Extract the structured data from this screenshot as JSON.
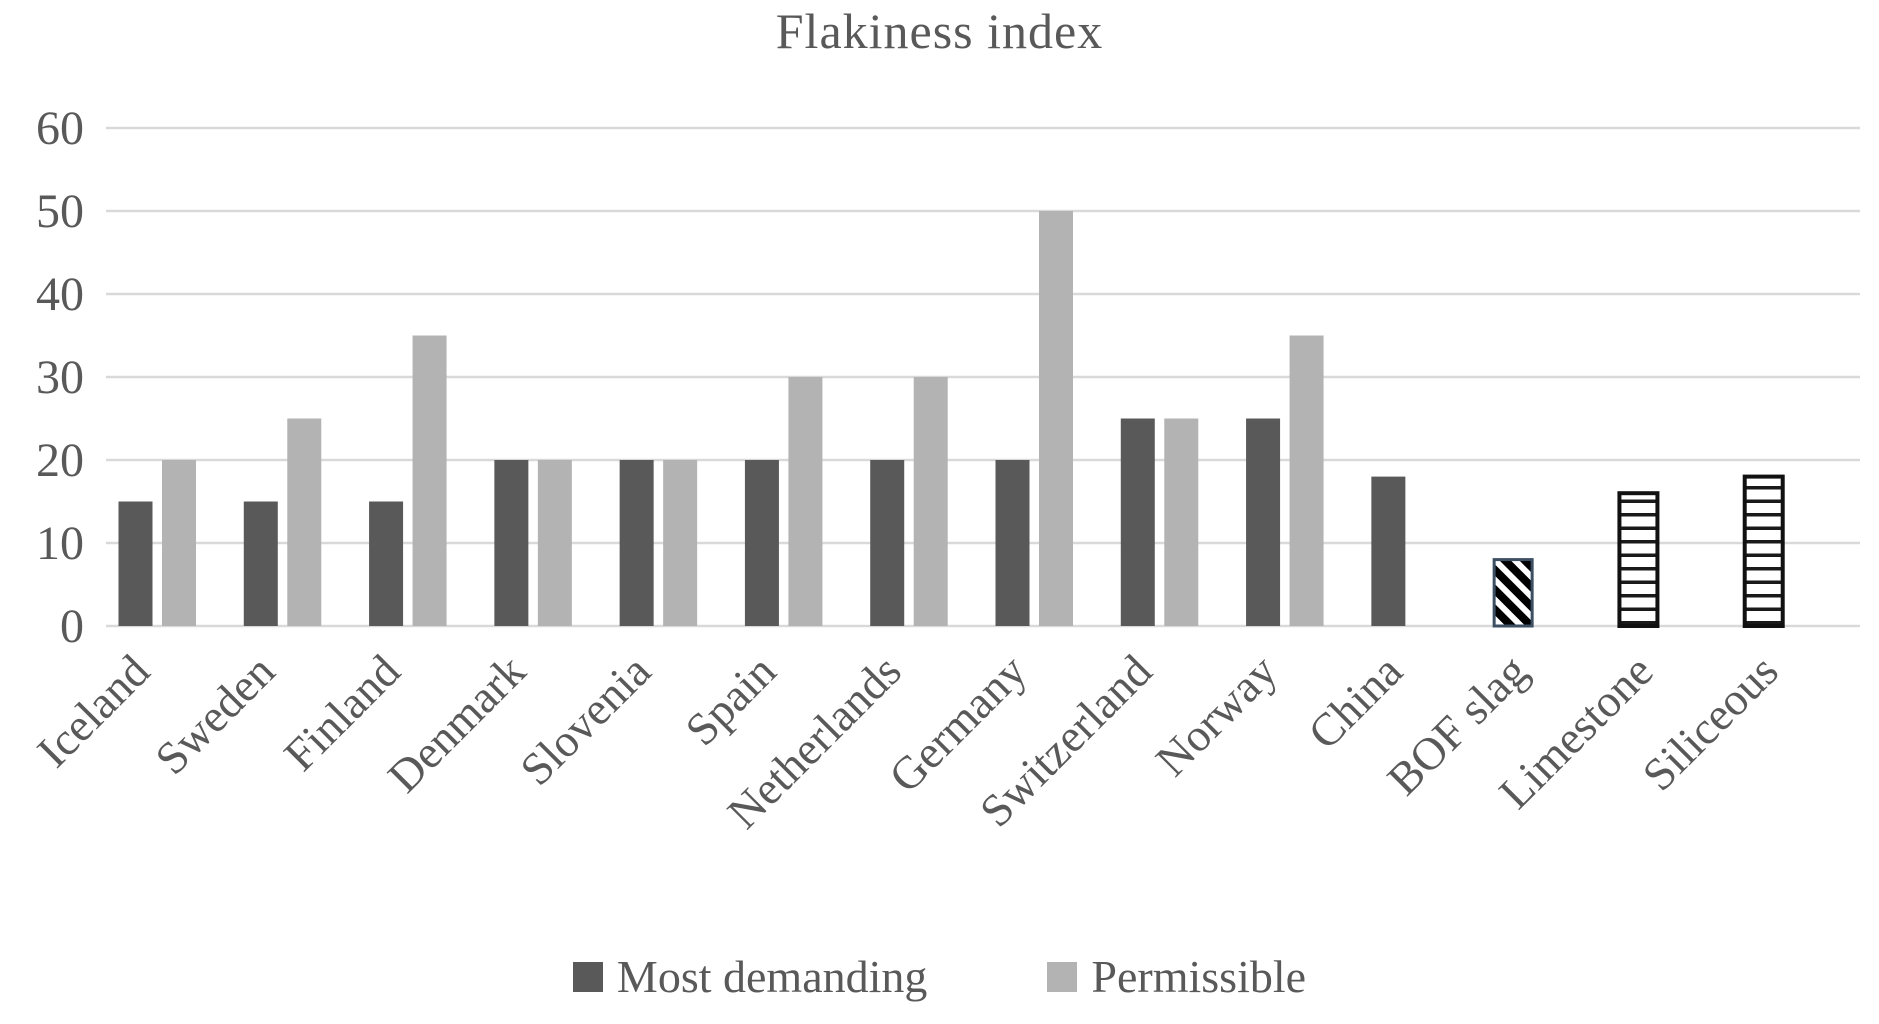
{
  "chart_data": {
    "type": "bar",
    "title": "Flakiness index",
    "categories": [
      "Iceland",
      "Sweden",
      "Finland",
      "Denmark",
      "Slovenia",
      "Spain",
      "Netherlands",
      "Germany",
      "Switzerland",
      "Norway",
      "China",
      "BOF slag",
      "Limestone",
      "Siliceous"
    ],
    "series": [
      {
        "name": "Most demanding",
        "color": "#595959",
        "values": [
          15,
          15,
          15,
          20,
          20,
          20,
          20,
          20,
          25,
          25,
          18,
          null,
          null,
          null
        ]
      },
      {
        "name": "Permissible",
        "color": "#b3b3b3",
        "values": [
          20,
          25,
          35,
          20,
          20,
          30,
          30,
          50,
          25,
          35,
          null,
          null,
          null,
          null
        ]
      }
    ],
    "pattern_bars": [
      {
        "category": "BOF slag",
        "value": 8,
        "pattern": "diagonal-hatch",
        "border_color": "#3d4f63",
        "stripe_color": "#000000"
      },
      {
        "category": "Limestone",
        "value": 16,
        "pattern": "horizontal-stripes",
        "border_color": "#111111",
        "stripe_color": "#1a1a1a"
      },
      {
        "category": "Siliceous",
        "value": 18,
        "pattern": "horizontal-stripes",
        "border_color": "#111111",
        "stripe_color": "#1a1a1a"
      }
    ],
    "ylim": [
      0,
      60
    ],
    "yticks": [
      0,
      10,
      20,
      30,
      40,
      50,
      60
    ],
    "xlabel": "",
    "ylabel": "",
    "grid": true,
    "legend_position": "bottom",
    "text_color": "#595959",
    "gridline_color": "#d9d9d9"
  }
}
